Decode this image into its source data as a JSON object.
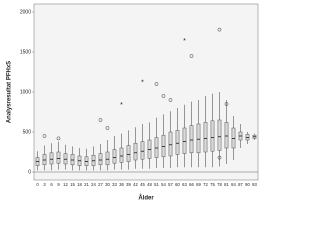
{
  "chart_data": {
    "type": "boxplot",
    "ylabel": "Analysresultat PFHxS",
    "xlabel": "Ålder",
    "categories": [
      "0",
      "3",
      "6",
      "9",
      "12",
      "15",
      "18",
      "21",
      "24",
      "27",
      "30",
      "33",
      "36",
      "39",
      "42",
      "45",
      "48",
      "51",
      "54",
      "57",
      "60",
      "63",
      "66",
      "69",
      "72",
      "75",
      "78",
      "81",
      "84",
      "87",
      "90",
      "93"
    ],
    "boxes": [
      {
        "min": 20,
        "q1": 80,
        "median": 130,
        "q3": 180,
        "max": 260
      },
      {
        "min": 20,
        "q1": 90,
        "median": 150,
        "q3": 220,
        "max": 330
      },
      {
        "min": 20,
        "q1": 100,
        "median": 160,
        "q3": 240,
        "max": 360
      },
      {
        "min": 30,
        "q1": 110,
        "median": 170,
        "q3": 250,
        "max": 380
      },
      {
        "min": 30,
        "q1": 100,
        "median": 160,
        "q3": 230,
        "max": 340
      },
      {
        "min": 20,
        "q1": 90,
        "median": 150,
        "q3": 220,
        "max": 320
      },
      {
        "min": 20,
        "q1": 80,
        "median": 140,
        "q3": 200,
        "max": 300
      },
      {
        "min": 20,
        "q1": 80,
        "median": 130,
        "q3": 190,
        "max": 290
      },
      {
        "min": 20,
        "q1": 80,
        "median": 140,
        "q3": 210,
        "max": 320
      },
      {
        "min": 20,
        "q1": 90,
        "median": 150,
        "q3": 230,
        "max": 350
      },
      {
        "min": 20,
        "q1": 90,
        "median": 160,
        "q3": 250,
        "max": 400
      },
      {
        "min": 30,
        "q1": 110,
        "median": 180,
        "q3": 280,
        "max": 450
      },
      {
        "min": 30,
        "q1": 120,
        "median": 200,
        "q3": 300,
        "max": 480
      },
      {
        "min": 30,
        "q1": 130,
        "median": 220,
        "q3": 330,
        "max": 520
      },
      {
        "min": 40,
        "q1": 150,
        "median": 240,
        "q3": 360,
        "max": 560
      },
      {
        "min": 40,
        "q1": 160,
        "median": 260,
        "q3": 380,
        "max": 600
      },
      {
        "min": 40,
        "q1": 170,
        "median": 280,
        "q3": 400,
        "max": 620
      },
      {
        "min": 50,
        "q1": 180,
        "median": 300,
        "q3": 430,
        "max": 680
      },
      {
        "min": 50,
        "q1": 190,
        "median": 320,
        "q3": 460,
        "max": 720
      },
      {
        "min": 50,
        "q1": 200,
        "median": 340,
        "q3": 500,
        "max": 760
      },
      {
        "min": 60,
        "q1": 220,
        "median": 360,
        "q3": 520,
        "max": 800
      },
      {
        "min": 60,
        "q1": 230,
        "median": 380,
        "q3": 550,
        "max": 840
      },
      {
        "min": 60,
        "q1": 240,
        "median": 400,
        "q3": 580,
        "max": 880
      },
      {
        "min": 60,
        "q1": 240,
        "median": 410,
        "q3": 600,
        "max": 900
      },
      {
        "min": 60,
        "q1": 250,
        "median": 420,
        "q3": 620,
        "max": 950
      },
      {
        "min": 60,
        "q1": 260,
        "median": 430,
        "q3": 640,
        "max": 980
      },
      {
        "min": 70,
        "q1": 270,
        "median": 440,
        "q3": 650,
        "max": 1000
      },
      {
        "min": 100,
        "q1": 300,
        "median": 450,
        "q3": 620,
        "max": 900
      },
      {
        "min": 150,
        "q1": 300,
        "median": 420,
        "q3": 550,
        "max": 700
      },
      {
        "min": 300,
        "q1": 400,
        "median": 450,
        "q3": 500,
        "max": 600
      },
      {
        "min": 350,
        "q1": 400,
        "median": 430,
        "q3": 470,
        "max": 500
      },
      {
        "min": 400,
        "q1": 420,
        "median": 440,
        "q3": 460,
        "max": 480
      }
    ],
    "outliers": [
      {
        "category": "3",
        "value": 450,
        "marker": "circle"
      },
      {
        "category": "9",
        "value": 420,
        "marker": "circle"
      },
      {
        "category": "27",
        "value": 650,
        "marker": "circle"
      },
      {
        "category": "30",
        "value": 550,
        "marker": "circle"
      },
      {
        "category": "36",
        "value": 850,
        "marker": "star"
      },
      {
        "category": "45",
        "value": 1130,
        "marker": "star"
      },
      {
        "category": "51",
        "value": 1100,
        "marker": "circle"
      },
      {
        "category": "54",
        "value": 950,
        "marker": "circle"
      },
      {
        "category": "57",
        "value": 900,
        "marker": "circle"
      },
      {
        "category": "66",
        "value": 1450,
        "marker": "circle"
      },
      {
        "category": "63",
        "value": 1650,
        "marker": "star"
      },
      {
        "category": "78",
        "value": 1780,
        "marker": "circle"
      },
      {
        "category": "81",
        "value": 850,
        "marker": "circle"
      },
      {
        "category": "78",
        "value": 180,
        "marker": "circle"
      }
    ],
    "ylim": [
      -100,
      2100
    ],
    "yticks": [
      0,
      500,
      1000,
      1500,
      2000
    ],
    "reference_line": 0,
    "color": "#555555"
  }
}
